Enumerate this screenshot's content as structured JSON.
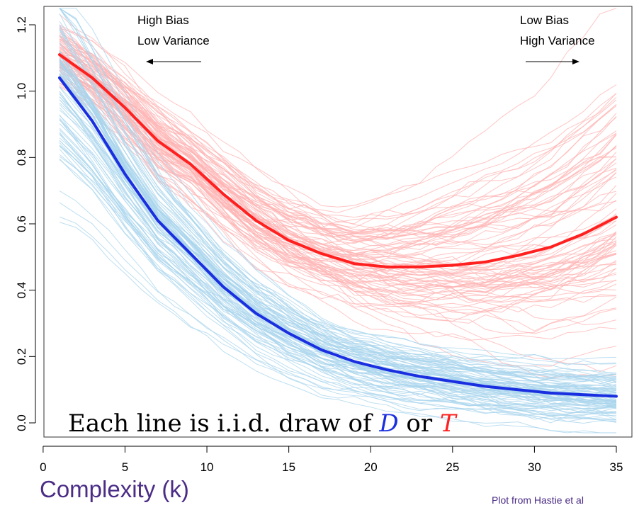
{
  "chart_data": {
    "type": "line",
    "xlim": [
      0,
      36
    ],
    "ylim": [
      -0.02,
      1.25
    ],
    "xticks": [
      0,
      5,
      10,
      15,
      20,
      25,
      30,
      35
    ],
    "yticks": [
      0.0,
      0.2,
      0.4,
      0.6,
      0.8,
      1.0,
      1.2
    ],
    "xtick_labels": [
      "0",
      "5",
      "10",
      "15",
      "20",
      "25",
      "30",
      "35"
    ],
    "ytick_labels": [
      "0.0",
      "0.2",
      "0.4",
      "0.6",
      "0.8",
      "1.0",
      "1.2"
    ],
    "xlabel": "Complexity (k)",
    "annotations": {
      "left_line1": "High Bias",
      "left_line2": "Low Variance",
      "right_line1": "Low Bias",
      "right_line2": "High Variance"
    },
    "caption": {
      "prefix": "Each line is i.i.d. draw of ",
      "d_symbol": "D",
      "middle": " or ",
      "t_symbol": "T"
    },
    "series": [
      {
        "color": "#ff2020",
        "x": [
          1,
          3,
          5,
          7,
          9,
          11,
          13,
          15,
          17,
          19,
          21,
          23,
          25,
          27,
          29,
          31,
          33,
          35
        ],
        "values": [
          1.11,
          1.04,
          0.95,
          0.85,
          0.78,
          0.69,
          0.61,
          0.55,
          0.51,
          0.48,
          0.47,
          0.47,
          0.475,
          0.485,
          0.505,
          0.53,
          0.57,
          0.62
        ]
      },
      {
        "color": "#1a2fe0",
        "x": [
          1,
          3,
          5,
          7,
          9,
          11,
          13,
          15,
          17,
          19,
          21,
          23,
          25,
          27,
          29,
          31,
          33,
          35
        ],
        "values": [
          1.04,
          0.91,
          0.75,
          0.61,
          0.51,
          0.41,
          0.33,
          0.27,
          0.22,
          0.185,
          0.16,
          0.14,
          0.125,
          0.11,
          0.1,
          0.09,
          0.085,
          0.08
        ]
      }
    ],
    "sample_curves": {
      "red_color": "#ffb3b3",
      "blue_color": "#a8d4ec"
    }
  },
  "credit": "Plot from Hastie et al"
}
